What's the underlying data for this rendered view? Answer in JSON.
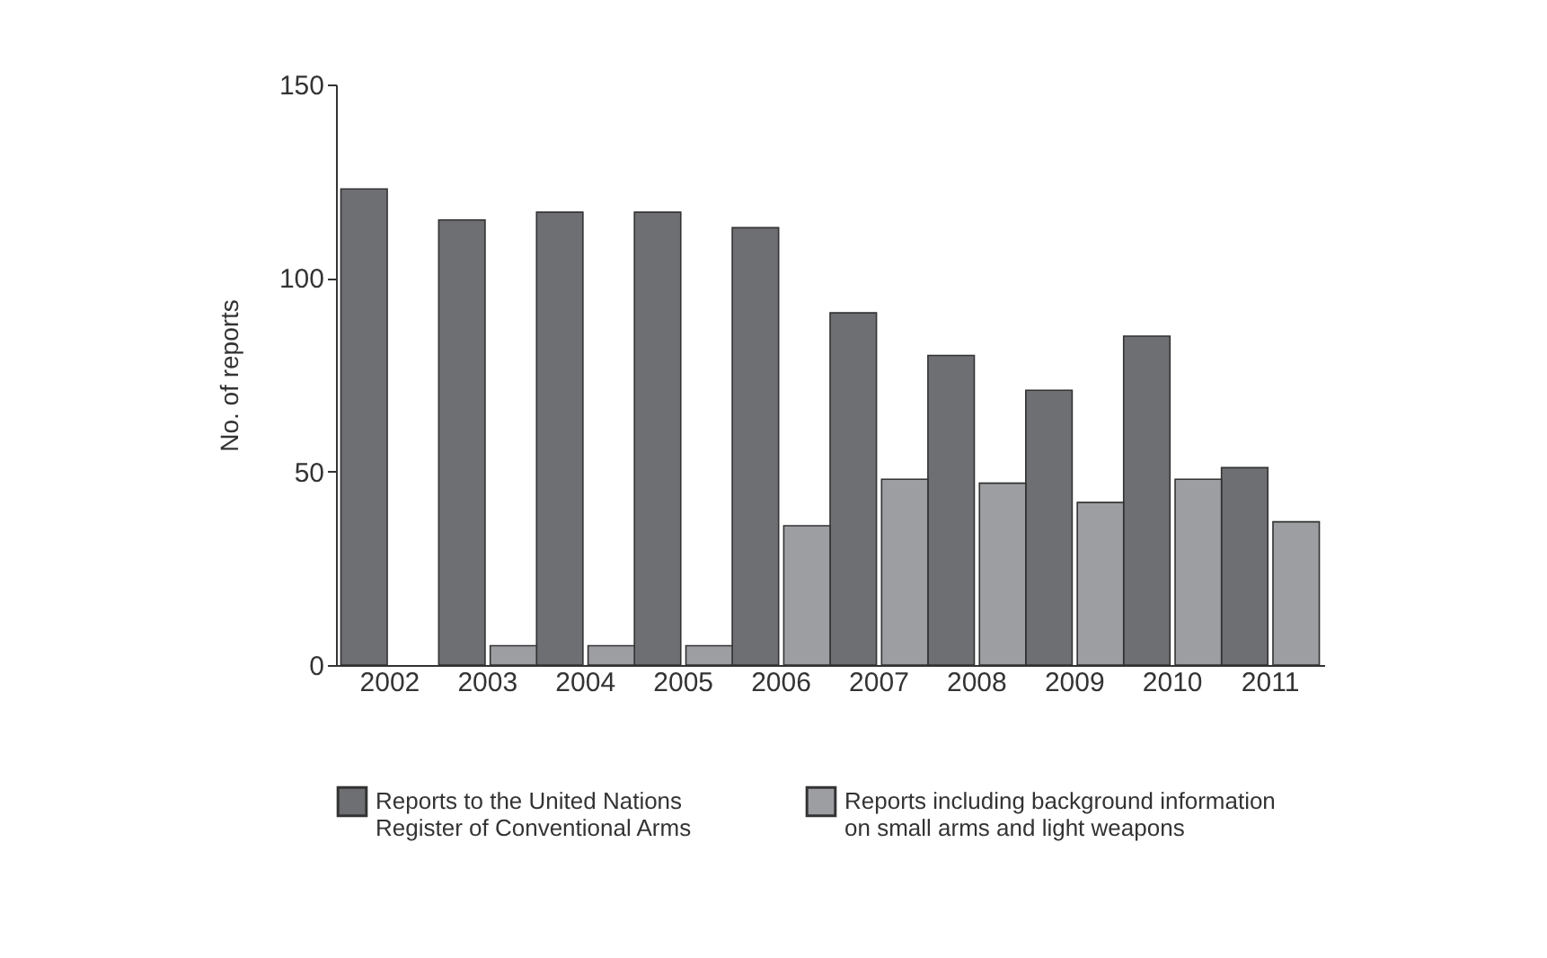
{
  "chart_data": {
    "type": "bar",
    "ylabel": "No. of reports",
    "categories": [
      "2002",
      "2003",
      "2004",
      "2005",
      "2006",
      "2007",
      "2008",
      "2009",
      "2010",
      "2011"
    ],
    "series": [
      {
        "name": "Reports to the United Nations\nRegister of Conventional Arms",
        "color": "#6e6f73",
        "values": [
          123,
          115,
          117,
          117,
          113,
          91,
          80,
          71,
          85,
          51
        ]
      },
      {
        "name": "Reports including background information\non small arms and light weapons",
        "color": "#9d9ea2",
        "values": [
          null,
          5,
          5,
          5,
          36,
          48,
          47,
          42,
          48,
          37
        ]
      }
    ],
    "ylim": [
      0,
      150
    ],
    "yticks": [
      0,
      50,
      100,
      150
    ],
    "grid": false,
    "legend": "bottom"
  }
}
